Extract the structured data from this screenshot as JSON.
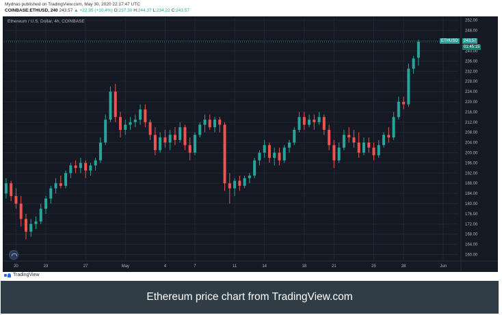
{
  "header": {
    "line1": "Mydnas published on TradingView.com, May 30, 2020 22:17:47 UTC",
    "symbol": "COINBASE:ETHUSD, 240",
    "last": "243.57",
    "change": "▲ +22.95 (+10.4%)",
    "o_label": "O:",
    "o": "237.30",
    "h_label": "H:",
    "h": "244.37",
    "l_label": "L:",
    "l": "234.22",
    "c_label": "C:",
    "c": "243.57"
  },
  "chart_title": "Ethereum / U.S. Dollar, 4h, COINBASE",
  "badge": {
    "symbol": "ETHUSD",
    "price": "243.57",
    "countdown": "01:45:15"
  },
  "footer_brand": "TradingView",
  "caption": "Ethereum price chart from TradingView.com",
  "colors": {
    "up": "#26a69a",
    "down": "#ef5350",
    "background": "#151924",
    "grid": "#232734",
    "axis_text": "#b2b5be"
  },
  "chart_data": {
    "type": "candlestick",
    "title": "Ethereum / U.S. Dollar, 4h, COINBASE",
    "interval": "4h",
    "ylim": [
      158,
      253
    ],
    "y_ticks": [
      160,
      164,
      168,
      172,
      176,
      180,
      184,
      188,
      192,
      196,
      200,
      204,
      208,
      212,
      216,
      220,
      224,
      228,
      232,
      236,
      240,
      244,
      248,
      252
    ],
    "x_ticks": [
      {
        "label": "20",
        "day": 20
      },
      {
        "label": "23",
        "day": 23
      },
      {
        "label": "27",
        "day": 27
      },
      {
        "label": "May",
        "day": 31
      },
      {
        "label": "4",
        "day": 35
      },
      {
        "label": "7",
        "day": 38
      },
      {
        "label": "11",
        "day": 42
      },
      {
        "label": "14",
        "day": 45
      },
      {
        "label": "18",
        "day": 49
      },
      {
        "label": "21",
        "day": 52
      },
      {
        "label": "25",
        "day": 56
      },
      {
        "label": "28",
        "day": 59
      },
      {
        "label": "Jun",
        "day": 63
      }
    ],
    "x_range": [
      18.8,
      64.5
    ],
    "last_price": 243.57,
    "series": [
      {
        "day": 19.0,
        "o": 184,
        "h": 190,
        "l": 182,
        "c": 188
      },
      {
        "day": 19.5,
        "o": 188,
        "h": 189,
        "l": 181,
        "c": 183
      },
      {
        "day": 20.0,
        "o": 183,
        "h": 186,
        "l": 178,
        "c": 180
      },
      {
        "day": 20.5,
        "o": 180,
        "h": 183,
        "l": 171,
        "c": 174
      },
      {
        "day": 21.0,
        "o": 174,
        "h": 176,
        "l": 166,
        "c": 169
      },
      {
        "day": 21.5,
        "o": 169,
        "h": 174,
        "l": 167,
        "c": 172
      },
      {
        "day": 22.0,
        "o": 172,
        "h": 175,
        "l": 170,
        "c": 173
      },
      {
        "day": 22.5,
        "o": 173,
        "h": 180,
        "l": 172,
        "c": 178
      },
      {
        "day": 23.0,
        "o": 178,
        "h": 183,
        "l": 176,
        "c": 182
      },
      {
        "day": 23.5,
        "o": 182,
        "h": 187,
        "l": 180,
        "c": 186
      },
      {
        "day": 24.0,
        "o": 186,
        "h": 190,
        "l": 184,
        "c": 188
      },
      {
        "day": 24.5,
        "o": 188,
        "h": 191,
        "l": 186,
        "c": 187
      },
      {
        "day": 25.0,
        "o": 187,
        "h": 193,
        "l": 186,
        "c": 192
      },
      {
        "day": 25.5,
        "o": 192,
        "h": 196,
        "l": 190,
        "c": 195
      },
      {
        "day": 26.0,
        "o": 195,
        "h": 197,
        "l": 192,
        "c": 194
      },
      {
        "day": 26.5,
        "o": 194,
        "h": 198,
        "l": 192,
        "c": 196
      },
      {
        "day": 27.0,
        "o": 196,
        "h": 197,
        "l": 190,
        "c": 193
      },
      {
        "day": 27.5,
        "o": 193,
        "h": 196,
        "l": 191,
        "c": 195
      },
      {
        "day": 28.0,
        "o": 195,
        "h": 198,
        "l": 193,
        "c": 197
      },
      {
        "day": 28.5,
        "o": 197,
        "h": 206,
        "l": 196,
        "c": 204
      },
      {
        "day": 29.0,
        "o": 204,
        "h": 215,
        "l": 203,
        "c": 213
      },
      {
        "day": 29.5,
        "o": 213,
        "h": 226,
        "l": 212,
        "c": 224
      },
      {
        "day": 30.0,
        "o": 224,
        "h": 227,
        "l": 212,
        "c": 214
      },
      {
        "day": 30.5,
        "o": 214,
        "h": 216,
        "l": 206,
        "c": 209
      },
      {
        "day": 31.0,
        "o": 209,
        "h": 213,
        "l": 207,
        "c": 211
      },
      {
        "day": 31.5,
        "o": 211,
        "h": 214,
        "l": 209,
        "c": 212
      },
      {
        "day": 32.0,
        "o": 212,
        "h": 215,
        "l": 210,
        "c": 213
      },
      {
        "day": 32.5,
        "o": 213,
        "h": 219,
        "l": 211,
        "c": 217
      },
      {
        "day": 33.0,
        "o": 217,
        "h": 219,
        "l": 210,
        "c": 212
      },
      {
        "day": 33.5,
        "o": 212,
        "h": 213,
        "l": 205,
        "c": 207
      },
      {
        "day": 34.0,
        "o": 207,
        "h": 210,
        "l": 199,
        "c": 201
      },
      {
        "day": 34.5,
        "o": 201,
        "h": 208,
        "l": 200,
        "c": 206
      },
      {
        "day": 35.0,
        "o": 206,
        "h": 209,
        "l": 202,
        "c": 204
      },
      {
        "day": 35.5,
        "o": 204,
        "h": 209,
        "l": 201,
        "c": 207
      },
      {
        "day": 36.0,
        "o": 207,
        "h": 210,
        "l": 203,
        "c": 205
      },
      {
        "day": 36.5,
        "o": 205,
        "h": 212,
        "l": 204,
        "c": 210
      },
      {
        "day": 37.0,
        "o": 210,
        "h": 211,
        "l": 201,
        "c": 203
      },
      {
        "day": 37.5,
        "o": 203,
        "h": 206,
        "l": 197,
        "c": 200
      },
      {
        "day": 38.0,
        "o": 200,
        "h": 208,
        "l": 199,
        "c": 207
      },
      {
        "day": 38.5,
        "o": 207,
        "h": 212,
        "l": 206,
        "c": 211
      },
      {
        "day": 39.0,
        "o": 211,
        "h": 215,
        "l": 208,
        "c": 213
      },
      {
        "day": 39.5,
        "o": 213,
        "h": 215,
        "l": 209,
        "c": 210
      },
      {
        "day": 40.0,
        "o": 210,
        "h": 214,
        "l": 208,
        "c": 213
      },
      {
        "day": 40.5,
        "o": 213,
        "h": 214,
        "l": 208,
        "c": 211
      },
      {
        "day": 41.0,
        "o": 211,
        "h": 212,
        "l": 185,
        "c": 188
      },
      {
        "day": 41.5,
        "o": 188,
        "h": 192,
        "l": 180,
        "c": 186
      },
      {
        "day": 42.0,
        "o": 186,
        "h": 190,
        "l": 183,
        "c": 189
      },
      {
        "day": 42.5,
        "o": 189,
        "h": 191,
        "l": 185,
        "c": 187
      },
      {
        "day": 43.0,
        "o": 187,
        "h": 191,
        "l": 186,
        "c": 190
      },
      {
        "day": 43.5,
        "o": 190,
        "h": 192,
        "l": 188,
        "c": 191
      },
      {
        "day": 44.0,
        "o": 191,
        "h": 198,
        "l": 190,
        "c": 197
      },
      {
        "day": 44.5,
        "o": 197,
        "h": 201,
        "l": 195,
        "c": 200
      },
      {
        "day": 45.0,
        "o": 200,
        "h": 205,
        "l": 198,
        "c": 203
      },
      {
        "day": 45.5,
        "o": 203,
        "h": 204,
        "l": 196,
        "c": 198
      },
      {
        "day": 46.0,
        "o": 198,
        "h": 202,
        "l": 195,
        "c": 200
      },
      {
        "day": 46.5,
        "o": 200,
        "h": 202,
        "l": 195,
        "c": 197
      },
      {
        "day": 47.0,
        "o": 197,
        "h": 203,
        "l": 196,
        "c": 202
      },
      {
        "day": 47.5,
        "o": 202,
        "h": 205,
        "l": 200,
        "c": 204
      },
      {
        "day": 48.0,
        "o": 204,
        "h": 210,
        "l": 203,
        "c": 209
      },
      {
        "day": 48.5,
        "o": 209,
        "h": 216,
        "l": 208,
        "c": 214
      },
      {
        "day": 49.0,
        "o": 214,
        "h": 216,
        "l": 209,
        "c": 211
      },
      {
        "day": 49.5,
        "o": 211,
        "h": 215,
        "l": 210,
        "c": 213
      },
      {
        "day": 50.0,
        "o": 213,
        "h": 215,
        "l": 209,
        "c": 212
      },
      {
        "day": 50.5,
        "o": 212,
        "h": 216,
        "l": 211,
        "c": 214
      },
      {
        "day": 51.0,
        "o": 214,
        "h": 215,
        "l": 207,
        "c": 209
      },
      {
        "day": 51.5,
        "o": 209,
        "h": 211,
        "l": 201,
        "c": 203
      },
      {
        "day": 52.0,
        "o": 203,
        "h": 205,
        "l": 194,
        "c": 197
      },
      {
        "day": 52.5,
        "o": 197,
        "h": 204,
        "l": 196,
        "c": 202
      },
      {
        "day": 53.0,
        "o": 202,
        "h": 209,
        "l": 201,
        "c": 207
      },
      {
        "day": 53.5,
        "o": 207,
        "h": 210,
        "l": 204,
        "c": 206
      },
      {
        "day": 54.0,
        "o": 206,
        "h": 209,
        "l": 202,
        "c": 204
      },
      {
        "day": 54.5,
        "o": 204,
        "h": 208,
        "l": 198,
        "c": 200
      },
      {
        "day": 55.0,
        "o": 200,
        "h": 206,
        "l": 199,
        "c": 204
      },
      {
        "day": 55.5,
        "o": 204,
        "h": 206,
        "l": 200,
        "c": 202
      },
      {
        "day": 56.0,
        "o": 202,
        "h": 204,
        "l": 197,
        "c": 199
      },
      {
        "day": 56.5,
        "o": 199,
        "h": 205,
        "l": 198,
        "c": 203
      },
      {
        "day": 57.0,
        "o": 203,
        "h": 208,
        "l": 202,
        "c": 207
      },
      {
        "day": 57.5,
        "o": 207,
        "h": 210,
        "l": 204,
        "c": 206
      },
      {
        "day": 58.0,
        "o": 206,
        "h": 216,
        "l": 205,
        "c": 214
      },
      {
        "day": 58.5,
        "o": 214,
        "h": 222,
        "l": 213,
        "c": 220
      },
      {
        "day": 59.0,
        "o": 220,
        "h": 222,
        "l": 217,
        "c": 219
      },
      {
        "day": 59.5,
        "o": 219,
        "h": 235,
        "l": 218,
        "c": 233
      },
      {
        "day": 60.0,
        "o": 233,
        "h": 238,
        "l": 231,
        "c": 237
      },
      {
        "day": 60.5,
        "o": 237.3,
        "h": 244.37,
        "l": 234.22,
        "c": 243.57
      }
    ]
  }
}
